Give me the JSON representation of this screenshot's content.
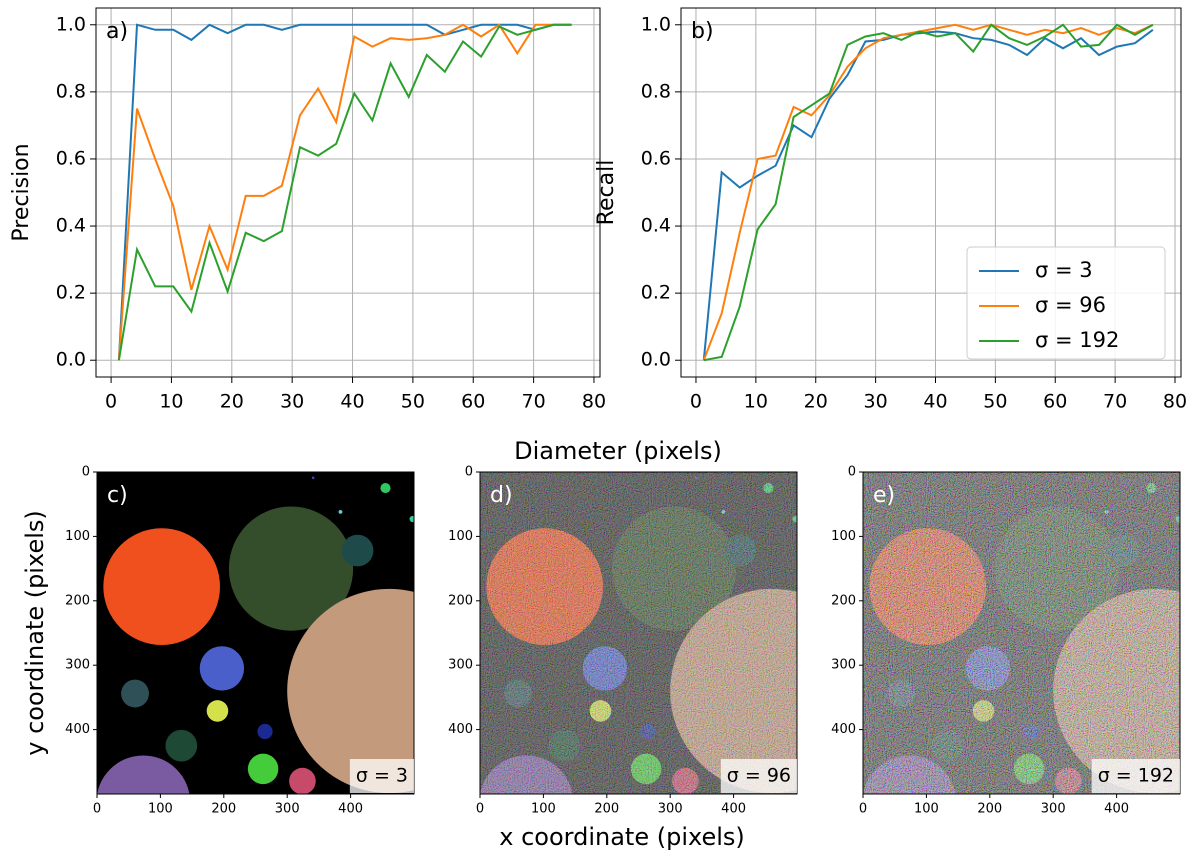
{
  "chart_data": [
    {
      "type": "line",
      "panel_label": "a)",
      "ylabel": "Precision",
      "xlabel": "Diameter (pixels)",
      "x": [
        1.3,
        4.3,
        7.3,
        10.3,
        13.3,
        16.3,
        19.3,
        22.3,
        25.3,
        28.3,
        31.3,
        34.3,
        37.3,
        40.3,
        43.3,
        46.3,
        49.3,
        52.3,
        55.3,
        58.3,
        61.3,
        64.3,
        67.3,
        70.3,
        73.3,
        76.3
      ],
      "series": [
        {
          "color": "#1f77b4",
          "values": [
            0,
            1.0,
            0.985,
            0.985,
            0.955,
            1.0,
            0.975,
            1.0,
            1.0,
            0.985,
            1,
            1,
            1,
            1,
            1,
            1,
            1,
            1,
            0.97,
            0.985,
            1,
            1,
            1,
            0.985,
            1,
            1
          ]
        },
        {
          "color": "#ff7f0e",
          "values": [
            0,
            0.75,
            0.6,
            0.46,
            0.21,
            0.4,
            0.27,
            0.49,
            0.49,
            0.52,
            0.73,
            0.81,
            0.71,
            0.965,
            0.935,
            0.96,
            0.955,
            0.96,
            0.97,
            1.0,
            0.965,
            1.0,
            0.915,
            1.0,
            1.0,
            1.0
          ]
        },
        {
          "color": "#2ca02c",
          "values": [
            0,
            0.33,
            0.22,
            0.22,
            0.145,
            0.35,
            0.205,
            0.38,
            0.355,
            0.385,
            0.635,
            0.61,
            0.645,
            0.795,
            0.715,
            0.885,
            0.785,
            0.91,
            0.86,
            0.95,
            0.905,
            0.995,
            0.97,
            0.985,
            1.0,
            1.0
          ]
        }
      ],
      "xlim": [
        -2.5,
        81
      ],
      "xticks": [
        0,
        10,
        20,
        30,
        40,
        50,
        60,
        70,
        80
      ],
      "ylim": [
        -0.05,
        1.05
      ],
      "yticks": [
        {
          "value": 0,
          "label": "0.0"
        },
        0.2,
        0.4,
        0.6,
        0.8,
        {
          "value": 1,
          "label": "1.0"
        }
      ],
      "grid": true
    },
    {
      "type": "line",
      "panel_label": "b)",
      "ylabel": "Recall",
      "x": [
        1.3,
        4.3,
        7.3,
        10.3,
        13.3,
        16.3,
        19.3,
        22.3,
        25.3,
        28.3,
        31.3,
        34.3,
        37.3,
        40.3,
        43.3,
        46.3,
        49.3,
        52.3,
        55.3,
        58.3,
        61.3,
        64.3,
        67.3,
        70.3,
        73.3,
        76.3
      ],
      "series": [
        {
          "name": "σ = 3",
          "color": "#1f77b4",
          "values": [
            0,
            0.56,
            0.515,
            0.55,
            0.58,
            0.7,
            0.665,
            0.78,
            0.85,
            0.95,
            0.955,
            0.97,
            0.975,
            0.98,
            0.975,
            0.96,
            0.955,
            0.94,
            0.91,
            0.96,
            0.93,
            0.96,
            0.91,
            0.935,
            0.945,
            0.985
          ]
        },
        {
          "name": "σ = 96",
          "color": "#ff7f0e",
          "values": [
            0,
            0.14,
            0.38,
            0.6,
            0.61,
            0.755,
            0.73,
            0.79,
            0.875,
            0.93,
            0.96,
            0.97,
            0.98,
            0.99,
            1.0,
            0.985,
            1.0,
            0.985,
            0.97,
            0.985,
            0.975,
            0.99,
            0.97,
            0.99,
            0.975,
            1.0
          ]
        },
        {
          "name": "σ = 192",
          "color": "#2ca02c",
          "values": [
            0,
            0.01,
            0.16,
            0.39,
            0.465,
            0.725,
            0.76,
            0.795,
            0.94,
            0.965,
            0.975,
            0.955,
            0.98,
            0.965,
            0.975,
            0.92,
            1.0,
            0.96,
            0.94,
            0.965,
            1.0,
            0.935,
            0.94,
            1.0,
            0.97,
            1.0
          ]
        }
      ],
      "xlim": [
        -2.5,
        81
      ],
      "xticks": [
        0,
        10,
        20,
        30,
        40,
        50,
        60,
        70,
        80
      ],
      "ylim": [
        -0.05,
        1.05
      ],
      "yticks": [
        {
          "value": 0,
          "label": "0.0"
        },
        0.2,
        0.4,
        0.6,
        0.8,
        {
          "value": 1,
          "label": "1.0"
        }
      ],
      "grid": true,
      "legend": "lower right"
    },
    {
      "type": "image",
      "panel_label": "c)",
      "annotation": "σ = 3",
      "ylabel": "y coordinate (pixels)",
      "noise": "none",
      "xlim": [
        0,
        500
      ],
      "xticks": [
        0,
        100,
        200,
        300,
        400
      ],
      "ylim": [
        500,
        0
      ],
      "yticks": [
        0,
        100,
        200,
        300,
        400
      ],
      "circles": [
        {
          "x": 102,
          "y": 178,
          "r": 92,
          "color": "#f0501e"
        },
        {
          "x": 306,
          "y": 150,
          "r": 98,
          "color": "#344e2c"
        },
        {
          "x": 461,
          "y": 340,
          "r": 161,
          "color": "#c49a7c"
        },
        {
          "x": 73,
          "y": 513,
          "r": 74,
          "color": "#7a5aa0"
        },
        {
          "x": 197,
          "y": 305,
          "r": 35,
          "color": "#4a5fc9"
        },
        {
          "x": 60,
          "y": 344,
          "r": 22,
          "color": "#2f5056"
        },
        {
          "x": 190,
          "y": 371,
          "r": 17,
          "color": "#d4e14a"
        },
        {
          "x": 133,
          "y": 425,
          "r": 25,
          "color": "#1e4a35"
        },
        {
          "x": 265,
          "y": 403,
          "r": 12,
          "color": "#1a2a90"
        },
        {
          "x": 262,
          "y": 461,
          "r": 24,
          "color": "#44cc3a"
        },
        {
          "x": 324,
          "y": 480,
          "r": 21,
          "color": "#c84a6a"
        },
        {
          "x": 411,
          "y": 122,
          "r": 25,
          "color": "#1f4a4a"
        },
        {
          "x": 455,
          "y": 25,
          "r": 8,
          "color": "#2fc860"
        },
        {
          "x": 384,
          "y": 62,
          "r": 3,
          "color": "#5ad0e0"
        },
        {
          "x": 498,
          "y": 73,
          "r": 5,
          "color": "#3ac8a0"
        },
        {
          "x": 341,
          "y": 9,
          "r": 2,
          "color": "#5a3ac8"
        }
      ]
    },
    {
      "type": "image",
      "panel_label": "d)",
      "annotation": "σ = 96",
      "xlabel": "x coordinate (pixels)",
      "noise": "medium",
      "xlim": [
        0,
        500
      ],
      "xticks": [
        0,
        100,
        200,
        300,
        400
      ],
      "ylim": [
        500,
        0
      ],
      "yticks": [
        0,
        100,
        200,
        300,
        400
      ],
      "circles": [
        {
          "x": 102,
          "y": 178,
          "r": 92,
          "color": "#f0501e"
        },
        {
          "x": 306,
          "y": 150,
          "r": 98,
          "color": "#344e2c"
        },
        {
          "x": 461,
          "y": 340,
          "r": 161,
          "color": "#c49a7c"
        },
        {
          "x": 73,
          "y": 513,
          "r": 74,
          "color": "#7a5aa0"
        },
        {
          "x": 197,
          "y": 305,
          "r": 35,
          "color": "#4a5fc9"
        },
        {
          "x": 60,
          "y": 344,
          "r": 22,
          "color": "#2f5056"
        },
        {
          "x": 190,
          "y": 371,
          "r": 17,
          "color": "#d4e14a"
        },
        {
          "x": 133,
          "y": 425,
          "r": 25,
          "color": "#1e4a35"
        },
        {
          "x": 265,
          "y": 403,
          "r": 12,
          "color": "#1a2a90"
        },
        {
          "x": 262,
          "y": 461,
          "r": 24,
          "color": "#44cc3a"
        },
        {
          "x": 324,
          "y": 480,
          "r": 21,
          "color": "#c84a6a"
        },
        {
          "x": 411,
          "y": 122,
          "r": 25,
          "color": "#1f4a4a"
        },
        {
          "x": 455,
          "y": 25,
          "r": 8,
          "color": "#2fc860"
        },
        {
          "x": 384,
          "y": 62,
          "r": 3,
          "color": "#5ad0e0"
        },
        {
          "x": 498,
          "y": 73,
          "r": 5,
          "color": "#3ac8a0"
        },
        {
          "x": 341,
          "y": 9,
          "r": 2,
          "color": "#5a3ac8"
        }
      ]
    },
    {
      "type": "image",
      "panel_label": "e)",
      "annotation": "σ = 192",
      "noise": "strong",
      "xlim": [
        0,
        500
      ],
      "xticks": [
        0,
        100,
        200,
        300,
        400
      ],
      "ylim": [
        500,
        0
      ],
      "yticks": [
        0,
        100,
        200,
        300,
        400
      ],
      "circles": [
        {
          "x": 102,
          "y": 178,
          "r": 92,
          "color": "#f0501e"
        },
        {
          "x": 306,
          "y": 150,
          "r": 98,
          "color": "#344e2c"
        },
        {
          "x": 461,
          "y": 340,
          "r": 161,
          "color": "#c49a7c"
        },
        {
          "x": 73,
          "y": 513,
          "r": 74,
          "color": "#7a5aa0"
        },
        {
          "x": 197,
          "y": 305,
          "r": 35,
          "color": "#4a5fc9"
        },
        {
          "x": 60,
          "y": 344,
          "r": 22,
          "color": "#2f5056"
        },
        {
          "x": 190,
          "y": 371,
          "r": 17,
          "color": "#d4e14a"
        },
        {
          "x": 133,
          "y": 425,
          "r": 25,
          "color": "#1e4a35"
        },
        {
          "x": 265,
          "y": 403,
          "r": 12,
          "color": "#1a2a90"
        },
        {
          "x": 262,
          "y": 461,
          "r": 24,
          "color": "#44cc3a"
        },
        {
          "x": 324,
          "y": 480,
          "r": 21,
          "color": "#c84a6a"
        },
        {
          "x": 411,
          "y": 122,
          "r": 25,
          "color": "#1f4a4a"
        },
        {
          "x": 455,
          "y": 25,
          "r": 8,
          "color": "#2fc860"
        },
        {
          "x": 384,
          "y": 62,
          "r": 3,
          "color": "#5ad0e0"
        },
        {
          "x": 498,
          "y": 73,
          "r": 5,
          "color": "#3ac8a0"
        },
        {
          "x": 341,
          "y": 9,
          "r": 2,
          "color": "#5a3ac8"
        }
      ]
    }
  ]
}
